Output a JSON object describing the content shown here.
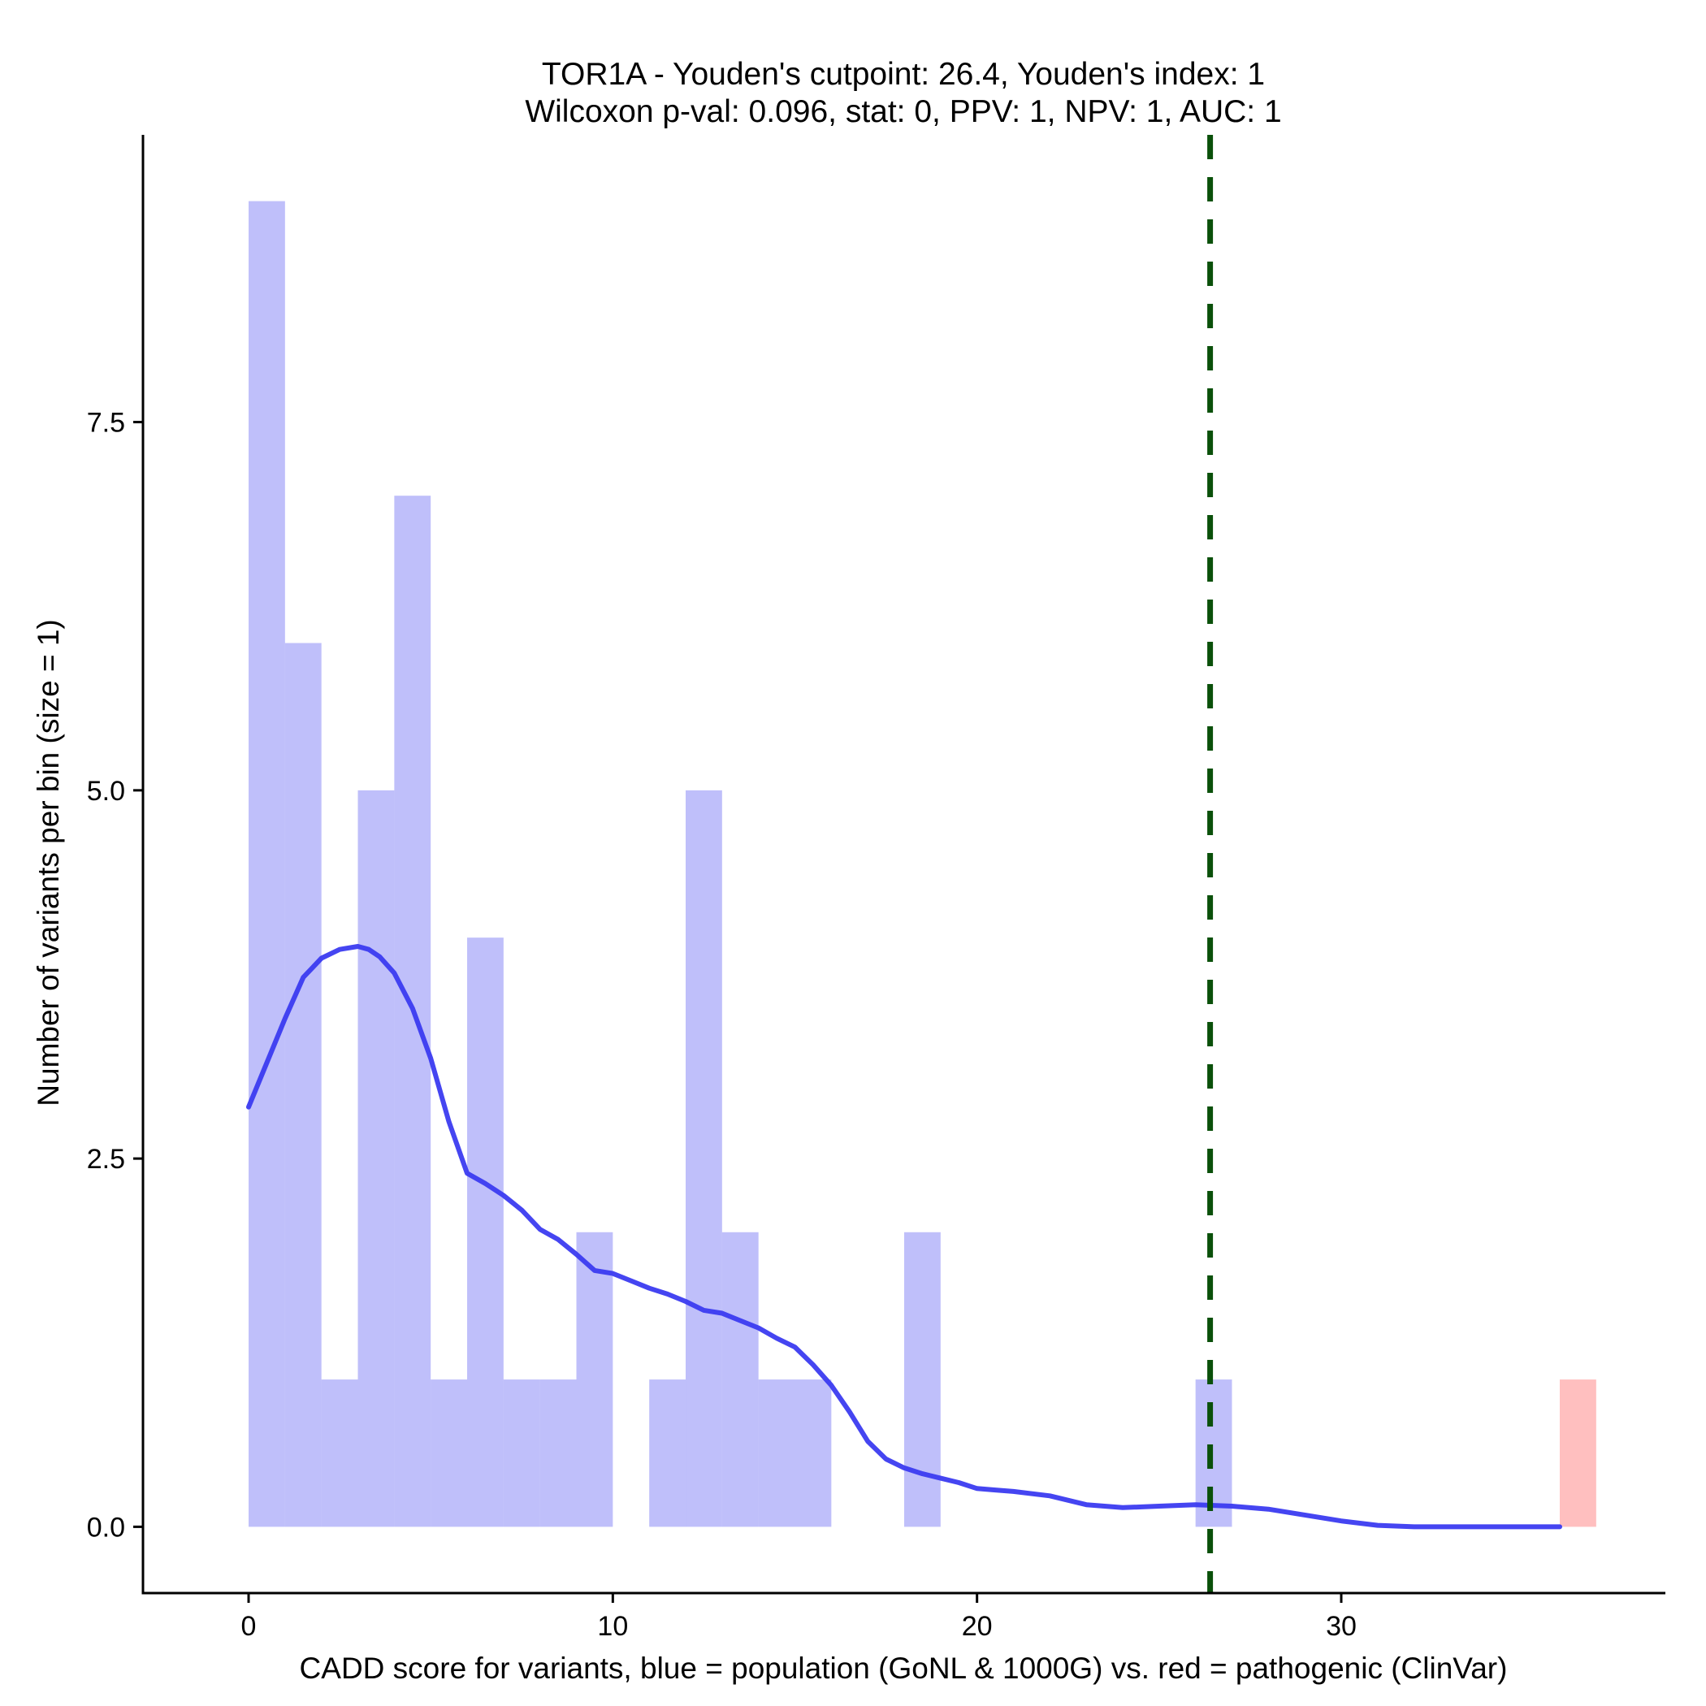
{
  "chart_data": {
    "type": "bar",
    "title": "TOR1A - Youden's cutpoint: 26.4, Youden's index: 1",
    "subtitle": "Wilcoxon p-val: 0.096, stat: 0, PPV: 1, NPV: 1, AUC: 1",
    "xlabel": "CADD score for variants, blue = population (GoNL & 1000G) vs. red = pathogenic (ClinVar)",
    "ylabel": "Number of variants per bin (size = 1)",
    "xlim": [
      -2.9,
      38.9
    ],
    "ylim": [
      -0.45,
      9.45
    ],
    "x_ticks": [
      0,
      10,
      20,
      30
    ],
    "x_tick_labels": [
      "0",
      "10",
      "20",
      "30"
    ],
    "y_ticks": [
      0,
      2.5,
      5,
      7.5
    ],
    "y_tick_labels": [
      "0.0",
      "2.5",
      "5.0",
      "7.5"
    ],
    "bin_width": 1,
    "series": [
      {
        "name": "population (GoNL & 1000G)",
        "color": "#8080f5",
        "opacity": 0.5,
        "bins": [
          {
            "x0": 0,
            "count": 9
          },
          {
            "x0": 1,
            "count": 6
          },
          {
            "x0": 2,
            "count": 1
          },
          {
            "x0": 3,
            "count": 5
          },
          {
            "x0": 4,
            "count": 7
          },
          {
            "x0": 5,
            "count": 1
          },
          {
            "x0": 6,
            "count": 4
          },
          {
            "x0": 7,
            "count": 1
          },
          {
            "x0": 8,
            "count": 1
          },
          {
            "x0": 9,
            "count": 2
          },
          {
            "x0": 11,
            "count": 1
          },
          {
            "x0": 12,
            "count": 5
          },
          {
            "x0": 13,
            "count": 2
          },
          {
            "x0": 14,
            "count": 1
          },
          {
            "x0": 15,
            "count": 1
          },
          {
            "x0": 18,
            "count": 2
          },
          {
            "x0": 26,
            "count": 1
          }
        ]
      },
      {
        "name": "pathogenic (ClinVar)",
        "color": "#ff8080",
        "opacity": 0.5,
        "bins": [
          {
            "x0": 36,
            "count": 1
          }
        ]
      }
    ],
    "density_curve": {
      "name": "population density",
      "color": "#3b3bf0",
      "x": [
        0,
        0.5,
        1,
        1.5,
        2,
        2.5,
        3,
        3.3,
        3.6,
        4,
        4.5,
        5,
        5.5,
        6,
        6.5,
        7,
        7.5,
        8,
        8.5,
        9,
        9.5,
        10,
        10.5,
        11,
        11.5,
        12,
        12.5,
        13,
        13.5,
        14,
        14.5,
        15,
        15.5,
        16,
        16.5,
        17,
        17.5,
        18,
        18.5,
        19,
        19.5,
        20,
        20.5,
        21,
        22,
        23,
        24,
        25,
        26,
        27,
        28,
        29,
        30,
        31,
        32,
        33,
        34,
        35,
        36
      ],
      "y": [
        2.85,
        3.15,
        3.45,
        3.73,
        3.86,
        3.92,
        3.94,
        3.92,
        3.87,
        3.76,
        3.52,
        3.18,
        2.75,
        2.4,
        2.33,
        2.25,
        2.15,
        2.02,
        1.95,
        1.85,
        1.74,
        1.72,
        1.67,
        1.62,
        1.58,
        1.53,
        1.47,
        1.45,
        1.4,
        1.35,
        1.28,
        1.22,
        1.1,
        0.96,
        0.78,
        0.58,
        0.46,
        0.4,
        0.36,
        0.33,
        0.3,
        0.26,
        0.25,
        0.24,
        0.21,
        0.15,
        0.13,
        0.14,
        0.15,
        0.14,
        0.12,
        0.08,
        0.04,
        0.01,
        0.0,
        0.0,
        0.0,
        0.0,
        0.0
      ]
    },
    "cutpoint_line": {
      "x": 26.4,
      "color": "#0a500a",
      "style": "dashed"
    },
    "grid": false,
    "legend": "none"
  }
}
